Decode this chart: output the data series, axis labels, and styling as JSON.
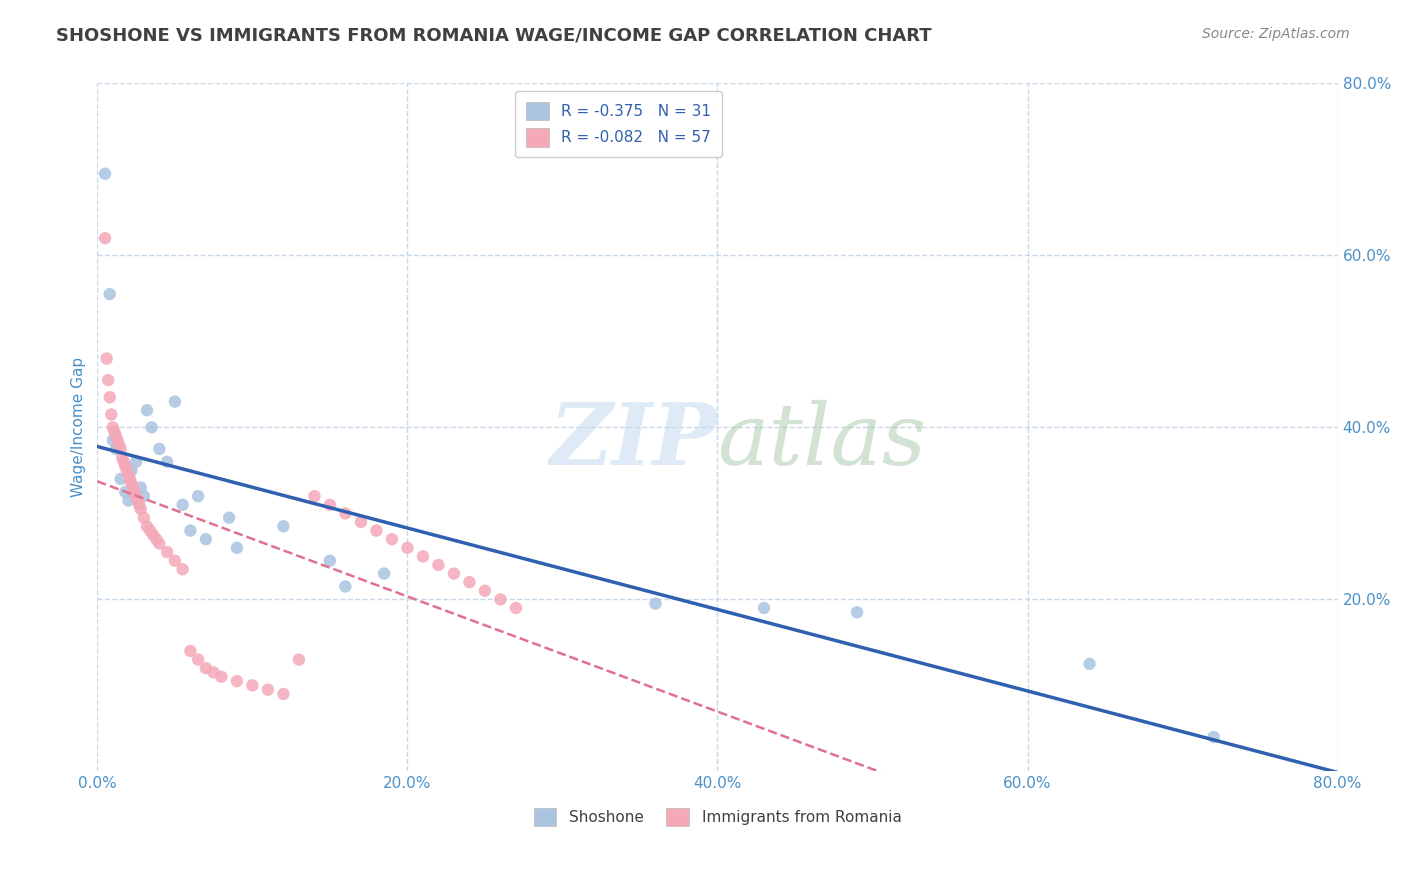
{
  "title": "SHOSHONE VS IMMIGRANTS FROM ROMANIA WAGE/INCOME GAP CORRELATION CHART",
  "source": "Source: ZipAtlas.com",
  "ylabel": "Wage/Income Gap",
  "xlim": [
    0.0,
    0.8
  ],
  "ylim": [
    0.0,
    0.8
  ],
  "xticks": [
    0.0,
    0.2,
    0.4,
    0.6,
    0.8
  ],
  "yticks": [
    0.2,
    0.4,
    0.6,
    0.8
  ],
  "xtick_labels": [
    "0.0%",
    "20.0%",
    "40.0%",
    "60.0%",
    "80.0%"
  ],
  "ytick_labels": [
    "20.0%",
    "40.0%",
    "60.0%",
    "80.0%"
  ],
  "background_color": "#ffffff",
  "grid_color": "#c8d8e8",
  "legend_entries": [
    {
      "label": "R = -0.375   N = 31",
      "color": "#aac4e0"
    },
    {
      "label": "R = -0.082   N = 57",
      "color": "#f4a8b8"
    }
  ],
  "shoshone_scatter": [
    [
      0.005,
      0.695
    ],
    [
      0.008,
      0.555
    ],
    [
      0.01,
      0.385
    ],
    [
      0.012,
      0.375
    ],
    [
      0.015,
      0.34
    ],
    [
      0.018,
      0.325
    ],
    [
      0.02,
      0.315
    ],
    [
      0.022,
      0.35
    ],
    [
      0.025,
      0.36
    ],
    [
      0.028,
      0.33
    ],
    [
      0.03,
      0.32
    ],
    [
      0.032,
      0.42
    ],
    [
      0.035,
      0.4
    ],
    [
      0.04,
      0.375
    ],
    [
      0.045,
      0.36
    ],
    [
      0.05,
      0.43
    ],
    [
      0.055,
      0.31
    ],
    [
      0.06,
      0.28
    ],
    [
      0.065,
      0.32
    ],
    [
      0.07,
      0.27
    ],
    [
      0.085,
      0.295
    ],
    [
      0.09,
      0.26
    ],
    [
      0.12,
      0.285
    ],
    [
      0.15,
      0.245
    ],
    [
      0.16,
      0.215
    ],
    [
      0.185,
      0.23
    ],
    [
      0.36,
      0.195
    ],
    [
      0.43,
      0.19
    ],
    [
      0.49,
      0.185
    ],
    [
      0.64,
      0.125
    ],
    [
      0.72,
      0.04
    ]
  ],
  "romania_scatter": [
    [
      0.005,
      0.62
    ],
    [
      0.006,
      0.48
    ],
    [
      0.007,
      0.455
    ],
    [
      0.008,
      0.435
    ],
    [
      0.009,
      0.415
    ],
    [
      0.01,
      0.4
    ],
    [
      0.011,
      0.395
    ],
    [
      0.012,
      0.39
    ],
    [
      0.013,
      0.385
    ],
    [
      0.014,
      0.38
    ],
    [
      0.015,
      0.375
    ],
    [
      0.016,
      0.365
    ],
    [
      0.017,
      0.36
    ],
    [
      0.018,
      0.355
    ],
    [
      0.019,
      0.35
    ],
    [
      0.02,
      0.345
    ],
    [
      0.021,
      0.34
    ],
    [
      0.022,
      0.335
    ],
    [
      0.023,
      0.33
    ],
    [
      0.024,
      0.325
    ],
    [
      0.025,
      0.32
    ],
    [
      0.026,
      0.315
    ],
    [
      0.027,
      0.31
    ],
    [
      0.028,
      0.305
    ],
    [
      0.03,
      0.295
    ],
    [
      0.032,
      0.285
    ],
    [
      0.034,
      0.28
    ],
    [
      0.036,
      0.275
    ],
    [
      0.038,
      0.27
    ],
    [
      0.04,
      0.265
    ],
    [
      0.045,
      0.255
    ],
    [
      0.05,
      0.245
    ],
    [
      0.055,
      0.235
    ],
    [
      0.06,
      0.14
    ],
    [
      0.065,
      0.13
    ],
    [
      0.07,
      0.12
    ],
    [
      0.075,
      0.115
    ],
    [
      0.08,
      0.11
    ],
    [
      0.09,
      0.105
    ],
    [
      0.1,
      0.1
    ],
    [
      0.11,
      0.095
    ],
    [
      0.12,
      0.09
    ],
    [
      0.13,
      0.13
    ],
    [
      0.14,
      0.32
    ],
    [
      0.15,
      0.31
    ],
    [
      0.16,
      0.3
    ],
    [
      0.17,
      0.29
    ],
    [
      0.18,
      0.28
    ],
    [
      0.19,
      0.27
    ],
    [
      0.2,
      0.26
    ],
    [
      0.21,
      0.25
    ],
    [
      0.22,
      0.24
    ],
    [
      0.23,
      0.23
    ],
    [
      0.24,
      0.22
    ],
    [
      0.25,
      0.21
    ],
    [
      0.26,
      0.2
    ],
    [
      0.27,
      0.19
    ]
  ],
  "shoshone_color": "#aac4e0",
  "romania_color": "#f4a8b8",
  "shoshone_line_color": "#3060b0",
  "romania_line_color": "#e07090",
  "title_color": "#404040",
  "axis_label_color": "#4a90c8",
  "tick_color": "#4a90c8"
}
